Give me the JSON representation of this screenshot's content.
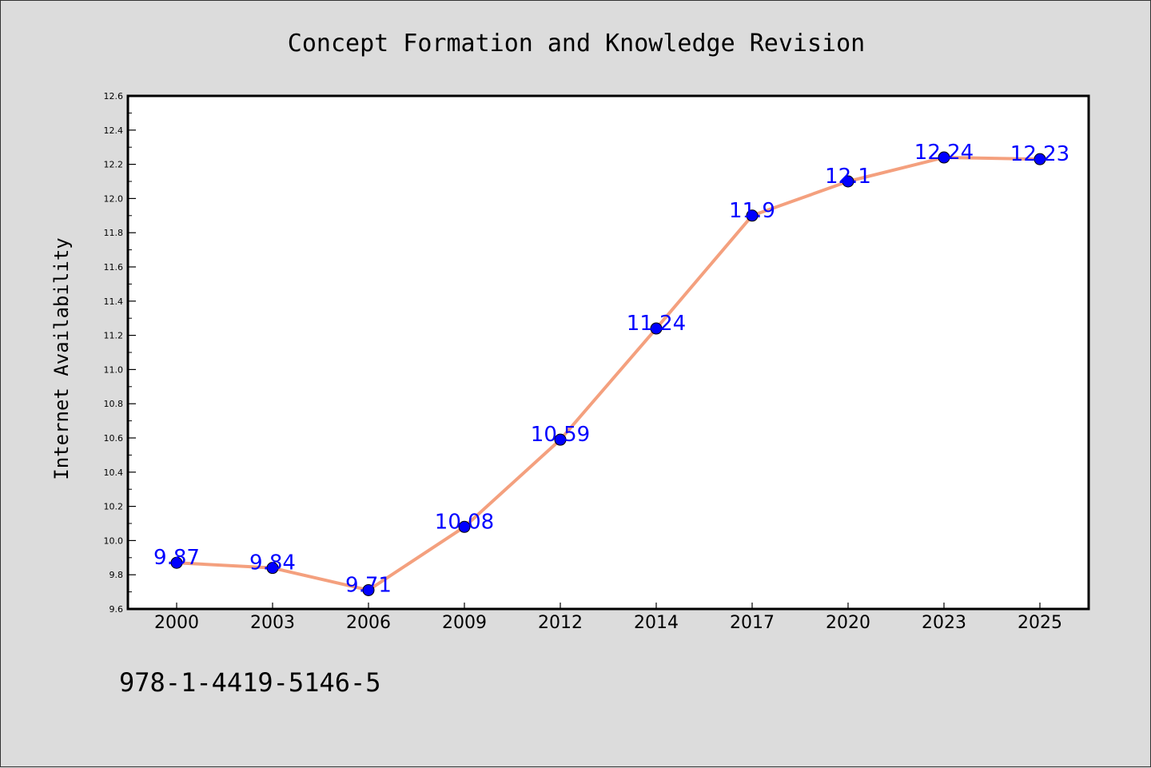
{
  "chart_data": {
    "type": "line",
    "title": "Concept Formation and Knowledge Revision",
    "xlabel": "",
    "ylabel": "Internet Availability",
    "categories": [
      "2000",
      "2003",
      "2006",
      "2009",
      "2012",
      "2014",
      "2017",
      "2020",
      "2023",
      "2025"
    ],
    "series": [
      {
        "values": [
          9.87,
          9.84,
          9.71,
          10.08,
          10.59,
          11.24,
          11.9,
          12.1,
          12.24,
          12.23
        ],
        "labels": [
          "9.87",
          "9.84",
          "9.71",
          "10.08",
          "10.59",
          "11.24",
          "11.9",
          "12.1",
          "12.24",
          "12.23"
        ],
        "line_color": "#f4a07e",
        "marker_color": "#0000ff"
      }
    ],
    "ylim": [
      9.6,
      12.6
    ],
    "yticks": [
      "9.6",
      "9.8",
      "10.0",
      "10.2",
      "10.4",
      "10.6",
      "10.8",
      "11.0",
      "11.2",
      "11.4",
      "11.6",
      "11.8",
      "12.0",
      "12.2",
      "12.4",
      "12.6"
    ],
    "grid": false,
    "legend": "none"
  },
  "footer_text": "978-1-4419-5146-5",
  "colors": {
    "background": "#dcdcdc",
    "plot_background": "#ffffff",
    "axis": "#000000",
    "line": "#f4a07e",
    "marker": "#0000ff",
    "data_label": "#0000ff"
  }
}
